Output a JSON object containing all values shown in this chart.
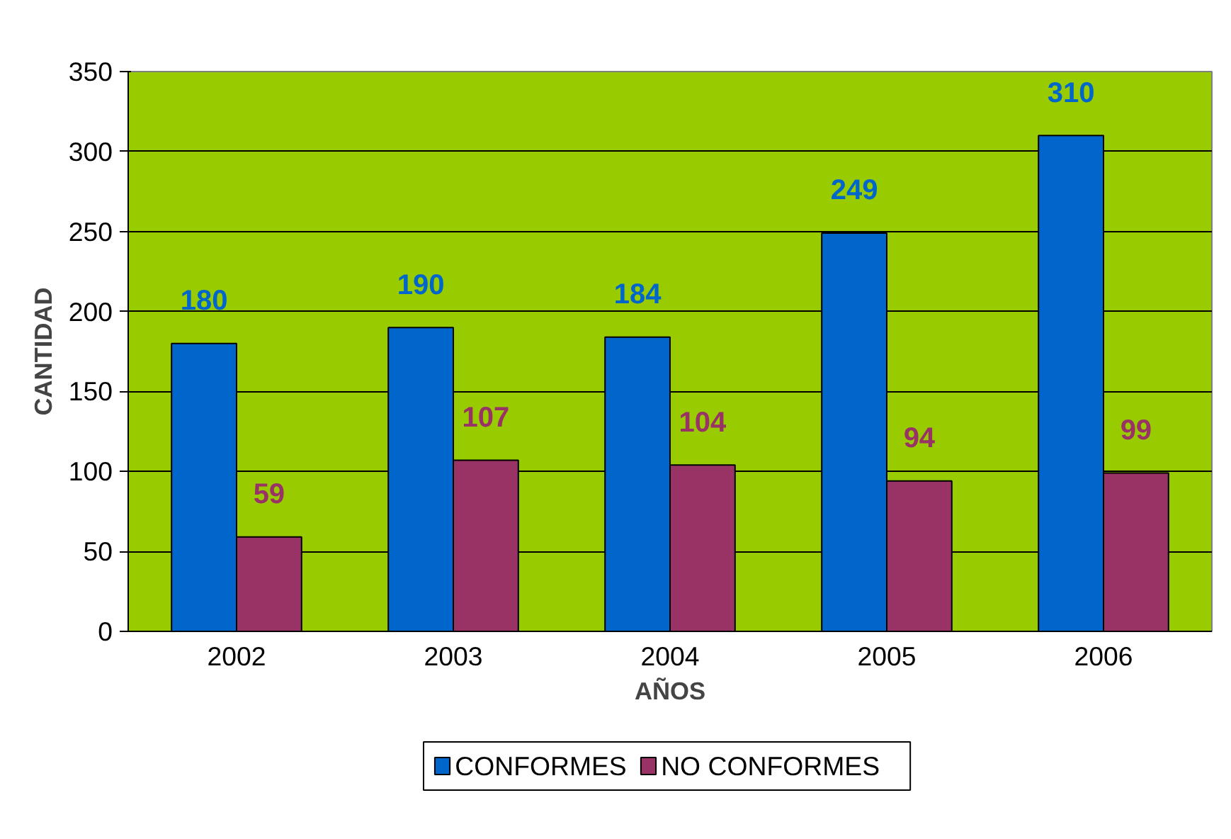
{
  "chart_data": {
    "type": "bar",
    "xlabel": "AÑOS",
    "ylabel": "CANTIDAD",
    "categories": [
      "2002",
      "2003",
      "2004",
      "2005",
      "2006"
    ],
    "series": [
      {
        "name": "CONFORMES",
        "color": "#0066cc",
        "values": [
          180,
          190,
          184,
          249,
          310
        ]
      },
      {
        "name": "NO CONFORMES",
        "color": "#993366",
        "values": [
          59,
          107,
          104,
          94,
          99
        ]
      }
    ],
    "ylim": [
      0,
      350
    ],
    "yticks": [
      0,
      50,
      100,
      150,
      200,
      250,
      300,
      350
    ],
    "grid": "y",
    "legend": "bottom",
    "data_labels": true
  }
}
